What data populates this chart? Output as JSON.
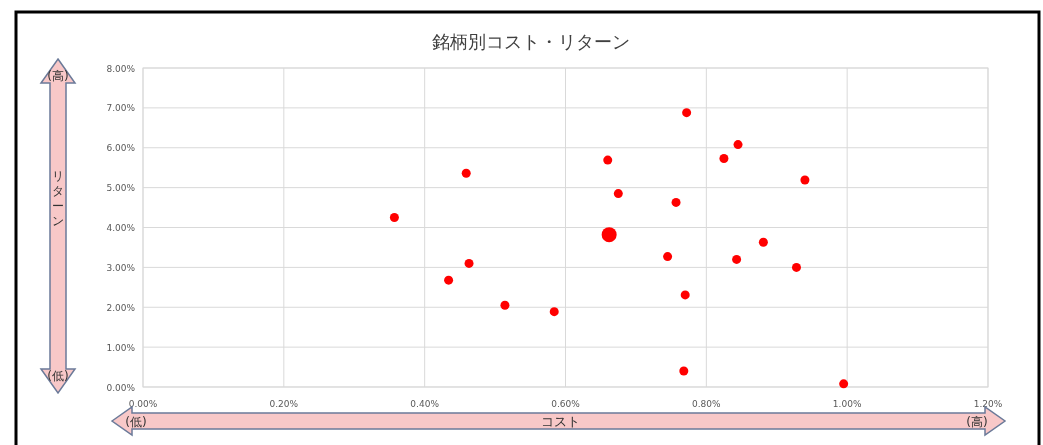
{
  "chart_data": {
    "type": "bubble",
    "title": "銘柄別コスト・リターン",
    "xlabel": "コスト",
    "ylabel": "リターン",
    "annotations": [
      "(高)",
      "(低)",
      "(低)",
      "(高)"
    ],
    "x": [
      0.357,
      0.459,
      0.463,
      0.434,
      0.514,
      0.584,
      0.66,
      0.675,
      0.662,
      0.745,
      0.757,
      0.772,
      0.77,
      0.768,
      0.825,
      0.845,
      0.843,
      0.881,
      0.928,
      0.94,
      0.995
    ],
    "values": [
      4.25,
      5.36,
      3.1,
      2.68,
      2.05,
      1.89,
      5.69,
      4.85,
      3.82,
      3.27,
      4.63,
      6.88,
      2.31,
      0.4,
      5.73,
      6.08,
      3.2,
      3.63,
      3.0,
      5.19,
      0.08
    ],
    "sizes": [
      0.36,
      0.36,
      0.36,
      0.36,
      0.36,
      0.36,
      0.36,
      0.36,
      1,
      0.36,
      0.36,
      0.36,
      0.36,
      0.36,
      0.36,
      0.36,
      0.36,
      0.36,
      0.36,
      0.36,
      0.36
    ],
    "color": "#ff0000",
    "marker": "circle",
    "xlim": [
      0,
      1.2
    ],
    "ylim": [
      0,
      8
    ],
    "xticks": [
      {
        "value": 0,
        "label": "0.00%"
      },
      {
        "value": 0.2,
        "label": "0.20%"
      },
      {
        "value": 0.4,
        "label": "0.40%"
      },
      {
        "value": 0.6,
        "label": "0.60%"
      },
      {
        "value": 0.8,
        "label": "0.80%"
      },
      {
        "value": 1.0,
        "label": "1.00%"
      },
      {
        "value": 1.2,
        "label": "1.20%"
      }
    ],
    "yticks": [
      {
        "value": 0,
        "label": "0.00%"
      },
      {
        "value": 1,
        "label": "1.00%"
      },
      {
        "value": 2,
        "label": "2.00%"
      },
      {
        "value": 3,
        "label": "3.00%"
      },
      {
        "value": 4,
        "label": "4.00%"
      },
      {
        "value": 5,
        "label": "5.00%"
      },
      {
        "value": 6,
        "label": "6.00%"
      },
      {
        "value": 7,
        "label": "7.00%"
      },
      {
        "value": 8,
        "label": "8.00%"
      }
    ],
    "grid": true
  }
}
